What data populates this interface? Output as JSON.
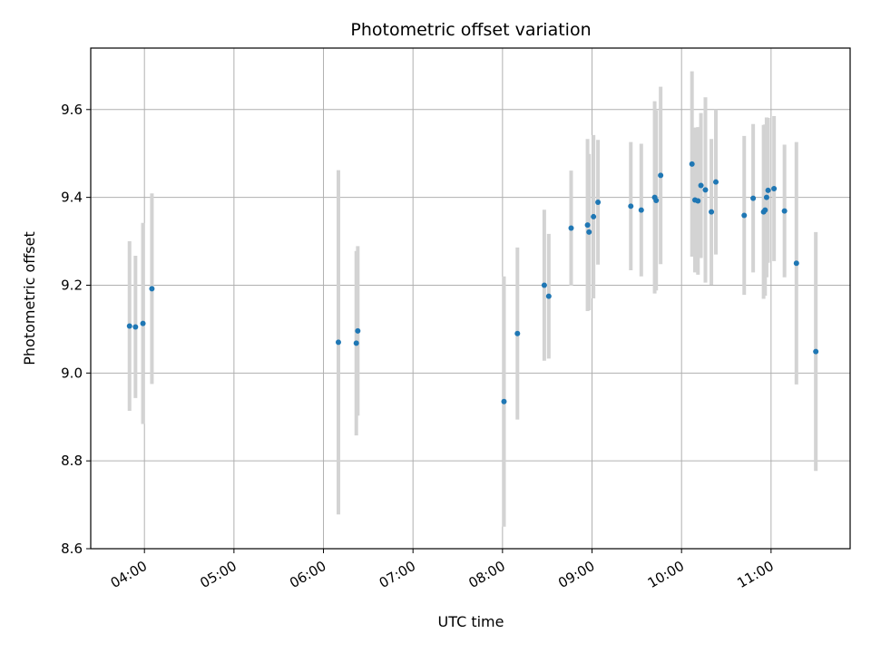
{
  "chart_data": {
    "type": "scatter",
    "title": "Photometric offset variation",
    "xlabel": "UTC time",
    "ylabel": "Photometric offset",
    "xlim": [
      "03:24",
      "11:53"
    ],
    "ylim": [
      8.6,
      9.74
    ],
    "x_ticks": [
      "04:00",
      "05:00",
      "06:00",
      "07:00",
      "08:00",
      "09:00",
      "10:00",
      "11:00"
    ],
    "y_ticks": [
      "8.6",
      "8.8",
      "9.0",
      "9.2",
      "9.4",
      "9.6"
    ],
    "grid": true,
    "colors": {
      "point": "#1f77b4",
      "errorbar": "#d3d3d3",
      "grid": "#b0b0b0"
    },
    "points": [
      {
        "x": "03:50",
        "y": 9.107,
        "err": 0.193
      },
      {
        "x": "03:54",
        "y": 9.105,
        "err": 0.162
      },
      {
        "x": "03:59",
        "y": 9.113,
        "err": 0.229
      },
      {
        "x": "04:05",
        "y": 9.192,
        "err": 0.217
      },
      {
        "x": "06:10",
        "y": 9.07,
        "err": 0.392
      },
      {
        "x": "06:22",
        "y": 9.068,
        "err": 0.21
      },
      {
        "x": "06:23",
        "y": 9.096,
        "err": 0.193
      },
      {
        "x": "08:01",
        "y": 8.935,
        "err": 0.285
      },
      {
        "x": "08:10",
        "y": 9.09,
        "err": 0.196
      },
      {
        "x": "08:28",
        "y": 9.2,
        "err": 0.172
      },
      {
        "x": "08:31",
        "y": 9.175,
        "err": 0.142
      },
      {
        "x": "08:46",
        "y": 9.33,
        "err": 0.131
      },
      {
        "x": "08:57",
        "y": 9.337,
        "err": 0.196
      },
      {
        "x": "08:58",
        "y": 9.321,
        "err": 0.178
      },
      {
        "x": "09:01",
        "y": 9.356,
        "err": 0.186
      },
      {
        "x": "09:04",
        "y": 9.389,
        "err": 0.142
      },
      {
        "x": "09:26",
        "y": 9.38,
        "err": 0.146
      },
      {
        "x": "09:33",
        "y": 9.371,
        "err": 0.151
      },
      {
        "x": "09:42",
        "y": 9.4,
        "err": 0.219
      },
      {
        "x": "09:43",
        "y": 9.393,
        "err": 0.205
      },
      {
        "x": "09:46",
        "y": 9.45,
        "err": 0.202
      },
      {
        "x": "10:07",
        "y": 9.476,
        "err": 0.211
      },
      {
        "x": "10:09",
        "y": 9.394,
        "err": 0.165
      },
      {
        "x": "10:11",
        "y": 9.392,
        "err": 0.168
      },
      {
        "x": "10:13",
        "y": 9.427,
        "err": 0.165
      },
      {
        "x": "10:16",
        "y": 9.417,
        "err": 0.211
      },
      {
        "x": "10:20",
        "y": 9.367,
        "err": 0.166
      },
      {
        "x": "10:23",
        "y": 9.435,
        "err": 0.165
      },
      {
        "x": "10:42",
        "y": 9.359,
        "err": 0.181
      },
      {
        "x": "10:48",
        "y": 9.398,
        "err": 0.169
      },
      {
        "x": "10:55",
        "y": 9.367,
        "err": 0.198
      },
      {
        "x": "10:56",
        "y": 9.371,
        "err": 0.195
      },
      {
        "x": "10:57",
        "y": 9.4,
        "err": 0.182
      },
      {
        "x": "10:58",
        "y": 9.416,
        "err": 0.165
      },
      {
        "x": "11:02",
        "y": 9.42,
        "err": 0.165
      },
      {
        "x": "11:09",
        "y": 9.369,
        "err": 0.151
      },
      {
        "x": "11:17",
        "y": 9.25,
        "err": 0.276
      },
      {
        "x": "11:30",
        "y": 9.049,
        "err": 0.272
      }
    ]
  }
}
